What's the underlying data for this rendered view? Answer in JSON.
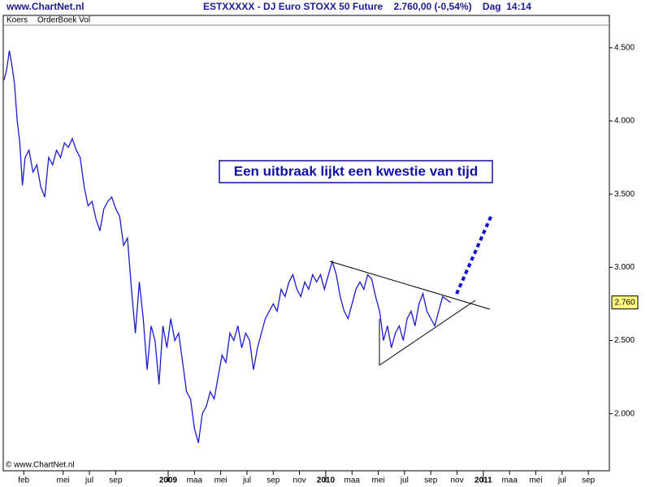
{
  "header": {
    "site": "www.ChartNet.nl",
    "title": "ESTXXXXX - DJ Euro STOXX 50 Future    2.760,00 (-0,54%)    Dag  14:14"
  },
  "tabs": [
    "Koers",
    "OrderBoek Vol"
  ],
  "copyright": "© www.ChartNet.nl",
  "chart_data": {
    "type": "line",
    "annotation": "Een uitbraak lijkt een kwestie van tijd",
    "last_price": {
      "value": 2760,
      "label": "2.760"
    },
    "x": [
      -0.5,
      -0.3,
      -0.1,
      0.1,
      0.3,
      0.5,
      0.7,
      0.9,
      1.1,
      1.4,
      1.7,
      2.0,
      2.3,
      2.6,
      2.9,
      3.2,
      3.5,
      3.8,
      4.1,
      4.4,
      4.7,
      5.0,
      5.3,
      5.6,
      5.9,
      6.2,
      6.5,
      6.8,
      7.1,
      7.4,
      7.7,
      8.0,
      8.3,
      8.6,
      8.9,
      9.2,
      9.5,
      9.8,
      10.1,
      10.4,
      10.7,
      11.0,
      11.3,
      11.6,
      11.9,
      12.2,
      12.5,
      12.8,
      13.1,
      13.4,
      13.7,
      14.0,
      14.3,
      14.6,
      14.9,
      15.2,
      15.5,
      15.8,
      16.1,
      16.4,
      16.7,
      17.0,
      17.3,
      17.6,
      17.9,
      18.2,
      18.5,
      18.8,
      19.1,
      19.4,
      19.7,
      20.0,
      20.3,
      20.6,
      20.9,
      21.2,
      21.5,
      21.8,
      22.1,
      22.4,
      22.7,
      23.0,
      23.3,
      23.6,
      23.9,
      24.2,
      24.5,
      24.8,
      25.1,
      25.4,
      25.7,
      26.0,
      26.3,
      26.6,
      26.9,
      27.2,
      27.5,
      27.8,
      28.1,
      28.4,
      28.7,
      29.0,
      29.3,
      29.6,
      29.9,
      30.2,
      30.5,
      30.8,
      31.1,
      31.4,
      31.7,
      32.0,
      32.3,
      32.6,
      32.9,
      33.2,
      33.5
    ],
    "series": [
      {
        "color": "#1a1ad0",
        "values": [
          4280,
          4350,
          4480,
          4380,
          4250,
          4000,
          3850,
          3560,
          3750,
          3800,
          3650,
          3700,
          3550,
          3480,
          3750,
          3700,
          3800,
          3750,
          3850,
          3820,
          3880,
          3800,
          3750,
          3550,
          3420,
          3450,
          3330,
          3250,
          3400,
          3450,
          3480,
          3400,
          3350,
          3150,
          3200,
          2850,
          2550,
          2900,
          2650,
          2300,
          2600,
          2500,
          2200,
          2600,
          2450,
          2650,
          2500,
          2550,
          2350,
          2150,
          2100,
          1900,
          1800,
          2000,
          2050,
          2150,
          2100,
          2250,
          2400,
          2350,
          2550,
          2500,
          2600,
          2450,
          2550,
          2500,
          2300,
          2450,
          2550,
          2650,
          2700,
          2750,
          2700,
          2850,
          2800,
          2900,
          2950,
          2850,
          2800,
          2900,
          2850,
          2950,
          2900,
          2950,
          2850,
          2950,
          3040,
          2950,
          2800,
          2700,
          2650,
          2750,
          2850,
          2900,
          2850,
          2950,
          2920,
          2800,
          2700,
          2500,
          2600,
          2450,
          2550,
          2600,
          2500,
          2650,
          2700,
          2600,
          2750,
          2820,
          2700,
          2650,
          2600,
          2700,
          2800,
          2780,
          2760
        ]
      }
    ],
    "xlim": [
      -0.5,
      45.6
    ],
    "xticks": [
      {
        "value": 1,
        "label": "feb"
      },
      {
        "value": 4,
        "label": "mei"
      },
      {
        "value": 6,
        "label": "jul"
      },
      {
        "value": 8,
        "label": "sep"
      },
      {
        "value": 12,
        "label": "2009"
      },
      {
        "value": 14,
        "label": "maa"
      },
      {
        "value": 16,
        "label": "mei"
      },
      {
        "value": 18,
        "label": "jul"
      },
      {
        "value": 20,
        "label": "sep"
      },
      {
        "value": 22,
        "label": "nov"
      },
      {
        "value": 24,
        "label": "2010"
      },
      {
        "value": 26,
        "label": "maa"
      },
      {
        "value": 28,
        "label": "mei"
      },
      {
        "value": 30,
        "label": "jul"
      },
      {
        "value": 32,
        "label": "sep"
      },
      {
        "value": 34,
        "label": "nov"
      },
      {
        "value": 36,
        "label": "2011"
      },
      {
        "value": 38,
        "label": "maa"
      },
      {
        "value": 40,
        "label": "mei"
      },
      {
        "value": 42,
        "label": "jul"
      },
      {
        "value": 44,
        "label": "sep"
      }
    ],
    "ylim": [
      1610,
      4660
    ],
    "yticks": [
      {
        "value": 2000,
        "label": "2.000"
      },
      {
        "value": 2500,
        "label": "2.500"
      },
      {
        "value": 3000,
        "label": "3.000"
      },
      {
        "value": 3500,
        "label": "3.500"
      },
      {
        "value": 4000,
        "label": "4.000"
      },
      {
        "value": 4500,
        "label": "4.500"
      }
    ]
  }
}
